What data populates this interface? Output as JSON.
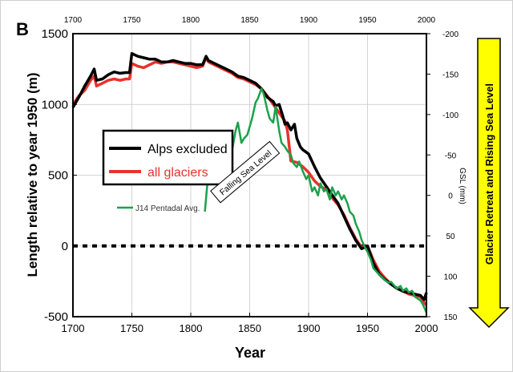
{
  "panel_label": "B",
  "arrow_label": "Glacier Retreat and Rising Sea Level",
  "colors": {
    "alps_excluded": "#000000",
    "all_glaciers": "#e8322b",
    "j14": "#1aa24a",
    "arrow_fill": "#ffff00",
    "legend_border": "#000000"
  },
  "chart_data": {
    "type": "line",
    "xlabel": "Year",
    "ylabel": "Length relative to year 1950 (m)",
    "y2label": "GSL (mm)",
    "xlim": [
      1700,
      2000
    ],
    "ylim": [
      -500,
      1500
    ],
    "y2lim": [
      150,
      -200
    ],
    "x_ticks": [
      "1700",
      "1750",
      "1800",
      "1850",
      "1900",
      "1950",
      "2000"
    ],
    "y_ticks": [
      "1500",
      "1000",
      "500",
      "0",
      "-500"
    ],
    "y2_ticks": [
      "-200",
      "-150",
      "-100",
      "-50",
      "0",
      "50",
      "100",
      "150"
    ],
    "annotation": "Falling Sea Level",
    "legend": [
      "Alps excluded",
      "all glaciers",
      "J14 Pentadal Avg."
    ],
    "series": [
      {
        "name": "Alps excluded",
        "axis": "left",
        "x": [
          1700,
          1705,
          1710,
          1715,
          1718,
          1720,
          1725,
          1730,
          1735,
          1740,
          1745,
          1748,
          1750,
          1755,
          1760,
          1765,
          1770,
          1775,
          1780,
          1785,
          1790,
          1795,
          1800,
          1805,
          1810,
          1813,
          1815,
          1820,
          1825,
          1830,
          1835,
          1840,
          1845,
          1850,
          1855,
          1860,
          1865,
          1870,
          1872,
          1875,
          1878,
          1880,
          1882,
          1885,
          1888,
          1890,
          1893,
          1895,
          1900,
          1905,
          1910,
          1915,
          1920,
          1925,
          1930,
          1935,
          1940,
          1945,
          1950,
          1955,
          1960,
          1965,
          1970,
          1975,
          1980,
          1985,
          1990,
          1995,
          1998,
          2000
        ],
        "y": [
          980,
          1050,
          1130,
          1200,
          1250,
          1170,
          1180,
          1210,
          1230,
          1220,
          1225,
          1225,
          1360,
          1340,
          1330,
          1320,
          1320,
          1300,
          1300,
          1310,
          1300,
          1290,
          1290,
          1280,
          1280,
          1340,
          1310,
          1290,
          1270,
          1250,
          1230,
          1200,
          1190,
          1170,
          1150,
          1110,
          1050,
          1020,
          990,
          1000,
          920,
          860,
          870,
          820,
          860,
          760,
          700,
          680,
          650,
          560,
          480,
          420,
          360,
          300,
          210,
          120,
          40,
          -20,
          0,
          -120,
          -200,
          -240,
          -270,
          -300,
          -320,
          -330,
          -340,
          -350,
          -380,
          -330
        ]
      },
      {
        "name": "all glaciers",
        "axis": "left",
        "x": [
          1700,
          1705,
          1710,
          1715,
          1718,
          1720,
          1725,
          1730,
          1735,
          1740,
          1745,
          1748,
          1750,
          1755,
          1760,
          1765,
          1770,
          1775,
          1780,
          1785,
          1790,
          1795,
          1800,
          1805,
          1810,
          1813,
          1815,
          1820,
          1825,
          1830,
          1835,
          1840,
          1845,
          1850,
          1855,
          1860,
          1865,
          1870,
          1875,
          1880,
          1882,
          1885,
          1890,
          1895,
          1900,
          1905,
          1910,
          1915,
          1920,
          1925,
          1930,
          1935,
          1940,
          1945,
          1950,
          1955,
          1960,
          1965,
          1970,
          1975,
          1980,
          1985,
          1990,
          1995,
          1998,
          2000
        ],
        "y": [
          1000,
          1060,
          1100,
          1170,
          1200,
          1130,
          1150,
          1170,
          1180,
          1170,
          1180,
          1180,
          1290,
          1270,
          1260,
          1280,
          1300,
          1290,
          1300,
          1300,
          1290,
          1280,
          1270,
          1260,
          1270,
          1330,
          1300,
          1280,
          1260,
          1240,
          1220,
          1190,
          1180,
          1160,
          1140,
          1110,
          1060,
          1000,
          940,
          880,
          820,
          600,
          590,
          560,
          520,
          460,
          420,
          400,
          340,
          290,
          220,
          130,
          50,
          -10,
          0,
          -100,
          -180,
          -230,
          -270,
          -300,
          -320,
          -340,
          -350,
          -360,
          -400,
          -420
        ]
      },
      {
        "name": "J14 Pentadal Avg.",
        "axis": "right",
        "x": [
          1812,
          1815,
          1817,
          1820,
          1823,
          1825,
          1828,
          1830,
          1833,
          1835,
          1838,
          1840,
          1843,
          1845,
          1848,
          1850,
          1852,
          1855,
          1857,
          1860,
          1862,
          1865,
          1867,
          1870,
          1872,
          1875,
          1877,
          1880,
          1882,
          1885,
          1887,
          1890,
          1892,
          1895,
          1898,
          1900,
          1903,
          1905,
          1908,
          1910,
          1913,
          1915,
          1918,
          1920,
          1923,
          1925,
          1928,
          1930,
          1933,
          1935,
          1938,
          1940,
          1943,
          1945,
          1948,
          1950,
          1953,
          1955,
          1958,
          1960,
          1963,
          1965,
          1968,
          1970,
          1973,
          1975,
          1978,
          1980,
          1983,
          1985,
          1988,
          1990,
          1993,
          1995,
          1997,
          2000
        ],
        "y": [
          20,
          -30,
          -35,
          -20,
          -45,
          -40,
          -60,
          -50,
          -75,
          -55,
          -80,
          -90,
          -65,
          -70,
          -75,
          -85,
          -95,
          -115,
          -120,
          -132,
          -125,
          -105,
          -95,
          -90,
          -110,
          -80,
          -65,
          -60,
          -55,
          -50,
          -40,
          -35,
          -42,
          -30,
          -20,
          -25,
          -5,
          -10,
          0,
          -15,
          -5,
          -8,
          5,
          -10,
          0,
          -5,
          5,
          0,
          10,
          20,
          25,
          35,
          45,
          55,
          65,
          70,
          80,
          90,
          95,
          98,
          102,
          105,
          108,
          107,
          112,
          115,
          112,
          118,
          115,
          120,
          118,
          125,
          128,
          130,
          135,
          145
        ]
      }
    ]
  }
}
